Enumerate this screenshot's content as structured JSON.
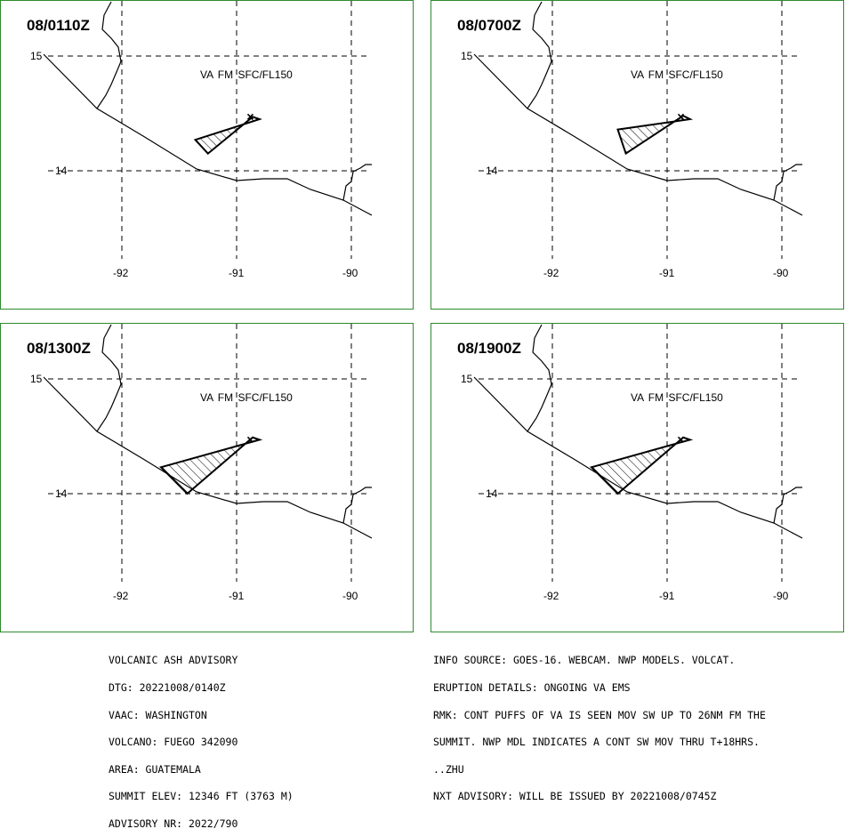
{
  "panels": [
    {
      "time": "08/0110Z",
      "label": "VA  FM SFC/FL150",
      "lat_labels": [
        "15",
        "14"
      ],
      "lon_labels": [
        "-92",
        "-91",
        "-90"
      ],
      "ash_polygon": [
        [
          -91.36,
          14.27
        ],
        [
          -90.8,
          14.45
        ],
        [
          -90.86,
          14.47
        ],
        [
          -91.25,
          14.15
        ]
      ]
    },
    {
      "time": "08/0700Z",
      "label": "VA  FM SFC/FL150",
      "lat_labels": [
        "15",
        "14"
      ],
      "lon_labels": [
        "-92",
        "-91",
        "-90"
      ],
      "ash_polygon": [
        [
          -91.43,
          14.36
        ],
        [
          -90.8,
          14.45
        ],
        [
          -90.86,
          14.48
        ],
        [
          -91.36,
          14.15
        ]
      ]
    },
    {
      "time": "08/1300Z",
      "label": "VA  FM SFC/FL150",
      "lat_labels": [
        "15",
        "14"
      ],
      "lon_labels": [
        "-92",
        "-91",
        "-90"
      ],
      "ash_polygon": [
        [
          -91.66,
          14.23
        ],
        [
          -90.8,
          14.47
        ],
        [
          -90.86,
          14.49
        ],
        [
          -91.43,
          14.0
        ]
      ]
    },
    {
      "time": "08/1900Z",
      "label": "VA  FM SFC/FL150",
      "lat_labels": [
        "15",
        "14"
      ],
      "lon_labels": [
        "-92",
        "-91",
        "-90"
      ],
      "ash_polygon": [
        [
          -91.66,
          14.23
        ],
        [
          -90.8,
          14.47
        ],
        [
          -90.86,
          14.49
        ],
        [
          -91.43,
          14.0
        ]
      ]
    }
  ],
  "advisory_left": [
    "VOLCANIC ASH ADVISORY",
    "DTG: 20221008/0140Z",
    "VAAC: WASHINGTON",
    "VOLCANO: FUEGO 342090",
    "AREA: GUATEMALA",
    "SUMMIT ELEV: 12346 FT (3763 M)",
    "ADVISORY NR: 2022/790"
  ],
  "advisory_right": [
    "INFO SOURCE: GOES-16. WEBCAM. NWP MODELS. VOLCAT.",
    "ERUPTION DETAILS: ONGOING VA EMS",
    "RMK: CONT PUFFS OF VA IS SEEN MOV SW UP TO 26NM FM THE",
    "SUMMIT. NWP MDL INDICATES A CONT SW MOV THRU T+18HRS.",
    "..ZHU",
    "NXT ADVISORY: WILL BE ISSUED BY 20221008/0745Z"
  ],
  "colors": {
    "frame": "#2e8b2e",
    "ink": "#000000",
    "background": "#ffffff"
  }
}
